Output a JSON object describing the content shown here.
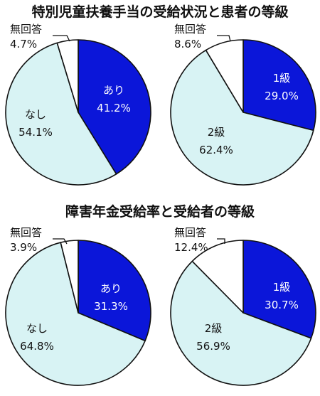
{
  "colors": {
    "dark_slice": "#0b16d9",
    "light_slice": "#d8f3f4",
    "unanswered_slice": "#ffffff",
    "outline": "#111111",
    "dark_text": "#ffffff",
    "light_text": "#111111"
  },
  "chart_data": [
    {
      "type": "pie",
      "title": "特別児童扶養手当の受給状況と患者の等級",
      "slices": [
        {
          "label": "あり",
          "value": 41.2,
          "value_label": "41.2%",
          "color": "#0b16d9"
        },
        {
          "label": "なし",
          "value": 54.1,
          "value_label": "54.1%",
          "color": "#d8f3f4"
        },
        {
          "label": "無回答",
          "value": 4.7,
          "value_label": "4.7%",
          "color": "#ffffff"
        }
      ]
    },
    {
      "type": "pie",
      "title": "",
      "slices": [
        {
          "label": "1級",
          "value": 29.0,
          "value_label": "29.0%",
          "color": "#0b16d9"
        },
        {
          "label": "2級",
          "value": 62.4,
          "value_label": "62.4%",
          "color": "#d8f3f4"
        },
        {
          "label": "無回答",
          "value": 8.6,
          "value_label": "8.6%",
          "color": "#ffffff"
        }
      ]
    },
    {
      "type": "pie",
      "title": "障害年金受給率と受給者の等級",
      "slices": [
        {
          "label": "あり",
          "value": 31.3,
          "value_label": "31.3%",
          "color": "#0b16d9"
        },
        {
          "label": "なし",
          "value": 64.8,
          "value_label": "64.8%",
          "color": "#d8f3f4"
        },
        {
          "label": "無回答",
          "value": 3.9,
          "value_label": "3.9%",
          "color": "#ffffff"
        }
      ]
    },
    {
      "type": "pie",
      "title": "",
      "slices": [
        {
          "label": "1級",
          "value": 30.7,
          "value_label": "30.7%",
          "color": "#0b16d9"
        },
        {
          "label": "2級",
          "value": 56.9,
          "value_label": "56.9%",
          "color": "#d8f3f4"
        },
        {
          "label": "無回答",
          "value": 12.4,
          "value_label": "12.4%",
          "color": "#ffffff"
        }
      ]
    }
  ]
}
